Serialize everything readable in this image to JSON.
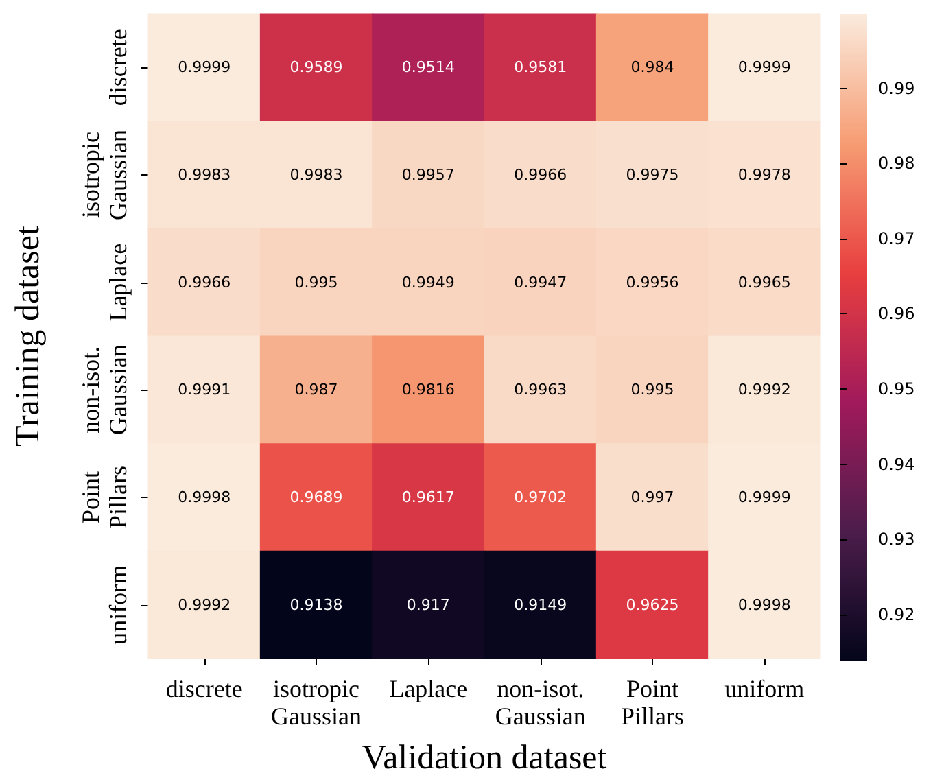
{
  "chart_data": {
    "type": "heatmap",
    "xlabel": "Validation dataset",
    "ylabel": "Training dataset",
    "categories": [
      "discrete",
      "isotropic Gaussian",
      "Laplace",
      "non-isot. Gaussian",
      "Point Pillars",
      "uniform"
    ],
    "y_categories": [
      "discrete",
      "isotropic Gaussian",
      "Laplace",
      "non-isot. Gaussian",
      "Point Pillars",
      "uniform"
    ],
    "cells": [
      [
        0.9999,
        0.9589,
        0.9514,
        0.9581,
        0.984,
        0.9999
      ],
      [
        0.9983,
        0.9983,
        0.9957,
        0.9966,
        0.9975,
        0.9978
      ],
      [
        0.9966,
        0.995,
        0.9949,
        0.9947,
        0.9956,
        0.9965
      ],
      [
        0.9991,
        0.987,
        0.9816,
        0.9963,
        0.995,
        0.9992
      ],
      [
        0.9998,
        0.9689,
        0.9617,
        0.9702,
        0.997,
        0.9999
      ],
      [
        0.9992,
        0.9138,
        0.917,
        0.9149,
        0.9625,
        0.9998
      ]
    ],
    "clim": [
      0.9138,
      0.9999
    ],
    "cticks": [
      0.92,
      0.93,
      0.94,
      0.95,
      0.96,
      0.97,
      0.98,
      0.99
    ],
    "data_labels": true
  }
}
